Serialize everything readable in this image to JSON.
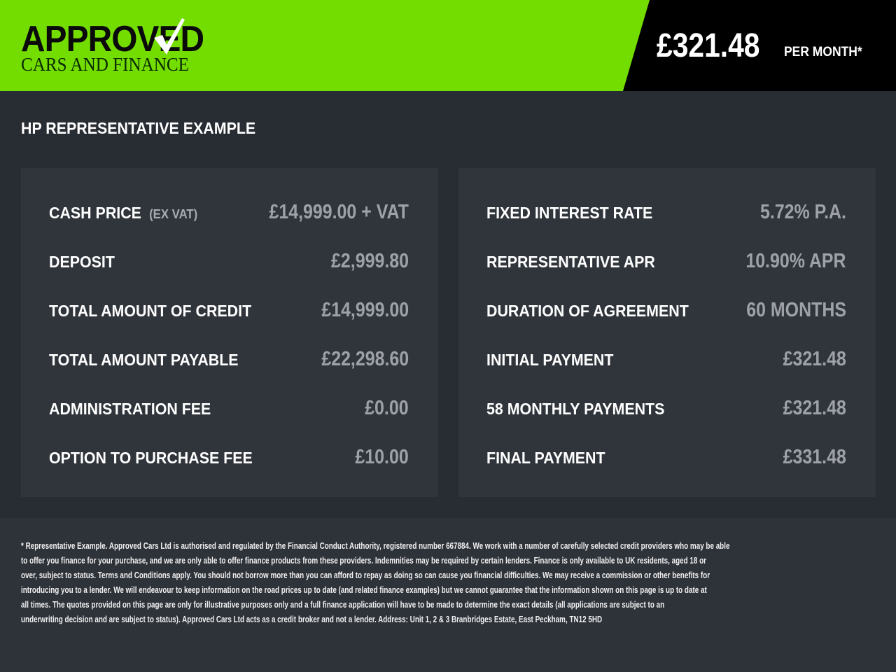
{
  "colors": {
    "brand_green": "#74dd00",
    "header_black": "#000000",
    "background": "#282c33",
    "panel": "#30353c",
    "value_gray": "#9ea2a8"
  },
  "logo": {
    "line1": "APPROVED",
    "line2": "CARS AND FINANCE",
    "icon": "checkmark-icon"
  },
  "header": {
    "price": "£321.48",
    "per_month": "PER MONTH*"
  },
  "title": "HP REPRESENTATIVE EXAMPLE",
  "left_panel": [
    {
      "label": "CASH PRICE",
      "sub": "(EX VAT)",
      "value": "£14,999.00 + VAT"
    },
    {
      "label": "DEPOSIT",
      "value": "£2,999.80"
    },
    {
      "label": "TOTAL AMOUNT OF CREDIT",
      "value": "£14,999.00"
    },
    {
      "label": "TOTAL AMOUNT PAYABLE",
      "value": "£22,298.60"
    },
    {
      "label": "ADMINISTRATION FEE",
      "value": "£0.00"
    },
    {
      "label": "OPTION TO PURCHASE FEE",
      "value": "£10.00"
    }
  ],
  "right_panel": [
    {
      "label": "FIXED INTEREST RATE",
      "value": "5.72% P.A."
    },
    {
      "label": "REPRESENTATIVE APR",
      "value": "10.90% APR"
    },
    {
      "label": "DURATION OF AGREEMENT",
      "value": "60 MONTHS"
    },
    {
      "label": "INITIAL PAYMENT",
      "value": "£321.48"
    },
    {
      "label": "58 MONTHLY PAYMENTS",
      "value": "£321.48"
    },
    {
      "label": "FINAL PAYMENT",
      "value": "£331.48"
    }
  ],
  "footer": [
    "* Representative Example. Approved Cars Ltd is authorised and regulated by the Financial Conduct Authority, registered number 667884. We work with a number of carefully selected credit providers who may be able",
    "to offer you finance for your purchase, and we are only able to offer finance products from these providers. Indemnities may be required by certain lenders. Finance is only available to UK residents, aged 18 or",
    "over, subject to status. Terms and Conditions apply. You should not borrow more than you can afford to repay as doing so can cause you financial difficulties. We may receive a commission or other benefits for",
    "introducing you to a lender. We will endeavour to keep information on the road prices up to date (and related finance examples) but we cannot guarantee that the information shown on this page is up to date at",
    "all times. The quotes provided on this page are only for illustrative purposes only and a full finance application will have to be made to determine the exact details (all applications are subject to an",
    "underwriting decision and are subject to status). Approved Cars Ltd acts as a credit broker and not a lender. Address: Unit 1, 2 & 3 Branbridges Estate, East Peckham, TN12 5HD"
  ]
}
